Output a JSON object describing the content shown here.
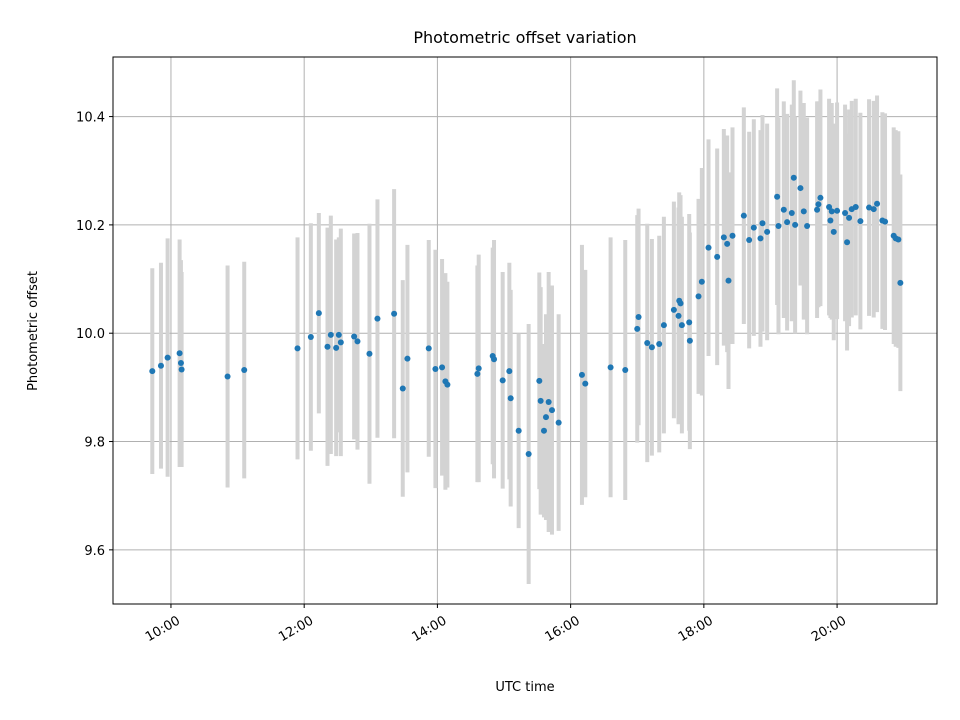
{
  "chart_data": {
    "type": "scatter",
    "title": "Photometric offset variation",
    "xlabel": "UTC time",
    "ylabel": "Photometric offset",
    "xlim": [
      9.13,
      21.5
    ],
    "ylim": [
      9.5,
      10.51
    ],
    "xticks": [
      10,
      12,
      14,
      16,
      18,
      20
    ],
    "xtick_labels": [
      "10:00",
      "12:00",
      "14:00",
      "16:00",
      "18:00",
      "20:00"
    ],
    "yticks": [
      9.6,
      9.8,
      10.0,
      10.2,
      10.4
    ],
    "ytick_labels": [
      "9.6",
      "9.8",
      "10.0",
      "10.2",
      "10.4"
    ],
    "grid": true,
    "point_color": "#1f77b4",
    "errorbar_color": "#d3d3d3",
    "series": [
      {
        "name": "offset",
        "x": [
          9.72,
          9.85,
          9.95,
          10.13,
          10.15,
          10.16,
          10.85,
          11.1,
          11.9,
          12.1,
          12.22,
          12.35,
          12.4,
          12.48,
          12.52,
          12.55,
          12.75,
          12.8,
          12.98,
          13.1,
          13.35,
          13.48,
          13.55,
          13.87,
          13.97,
          14.07,
          14.12,
          14.15,
          14.6,
          14.62,
          14.83,
          14.85,
          14.98,
          15.08,
          15.1,
          15.22,
          15.37,
          15.53,
          15.55,
          15.6,
          15.63,
          15.67,
          15.72,
          15.82,
          16.17,
          16.22,
          16.6,
          16.82,
          17.0,
          17.02,
          17.15,
          17.22,
          17.33,
          17.4,
          17.55,
          17.62,
          17.63,
          17.65,
          17.67,
          17.78,
          17.79,
          17.92,
          17.97,
          18.07,
          18.2,
          18.3,
          18.35,
          18.37,
          18.43,
          18.6,
          18.68,
          18.75,
          18.85,
          18.88,
          18.95,
          19.1,
          19.12,
          19.2,
          19.25,
          19.32,
          19.35,
          19.37,
          19.45,
          19.5,
          19.55,
          19.7,
          19.72,
          19.75,
          19.88,
          19.9,
          19.92,
          19.95,
          20.0,
          20.12,
          20.15,
          20.18,
          20.22,
          20.28,
          20.35,
          20.48,
          20.55,
          20.6,
          20.68,
          20.72,
          20.85,
          20.88,
          20.92,
          20.95
        ],
        "y": [
          9.93,
          9.94,
          9.955,
          9.963,
          9.945,
          9.933,
          9.92,
          9.932,
          9.972,
          9.993,
          10.037,
          9.975,
          9.997,
          9.973,
          9.997,
          9.983,
          9.994,
          9.985,
          9.962,
          10.027,
          10.036,
          9.898,
          9.953,
          9.972,
          9.934,
          9.937,
          9.911,
          9.905,
          9.925,
          9.935,
          9.958,
          9.952,
          9.913,
          9.93,
          9.88,
          9.82,
          9.777,
          9.912,
          9.875,
          9.82,
          9.845,
          9.873,
          9.858,
          9.835,
          9.923,
          9.907,
          9.937,
          9.932,
          10.008,
          10.03,
          9.982,
          9.974,
          9.98,
          10.015,
          10.043,
          10.032,
          10.06,
          10.055,
          10.015,
          10.02,
          9.986,
          10.068,
          10.095,
          10.158,
          10.141,
          10.177,
          10.165,
          10.097,
          10.18,
          10.217,
          10.172,
          10.195,
          10.175,
          10.203,
          10.187,
          10.252,
          10.198,
          10.228,
          10.205,
          10.222,
          10.287,
          10.2,
          10.268,
          10.225,
          10.198,
          10.228,
          10.238,
          10.25,
          10.233,
          10.208,
          10.225,
          10.187,
          10.226,
          10.222,
          10.168,
          10.213,
          10.229,
          10.233,
          10.207,
          10.232,
          10.229,
          10.239,
          10.208,
          10.206,
          10.18,
          10.175,
          10.173,
          10.093
        ],
        "yerr": [
          0.19,
          0.19,
          0.22,
          0.21,
          0.19,
          0.18,
          0.205,
          0.2,
          0.205,
          0.21,
          0.185,
          0.22,
          0.22,
          0.2,
          0.18,
          0.21,
          0.19,
          0.2,
          0.24,
          0.22,
          0.23,
          0.2,
          0.21,
          0.2,
          0.22,
          0.2,
          0.2,
          0.19,
          0.2,
          0.21,
          0.2,
          0.22,
          0.2,
          0.2,
          0.2,
          0.18,
          0.24,
          0.2,
          0.21,
          0.16,
          0.19,
          0.24,
          0.23,
          0.2,
          0.24,
          0.21,
          0.24,
          0.24,
          0.21,
          0.2,
          0.22,
          0.2,
          0.2,
          0.2,
          0.2,
          0.2,
          0.2,
          0.2,
          0.2,
          0.2,
          0.2,
          0.18,
          0.21,
          0.2,
          0.2,
          0.2,
          0.2,
          0.2,
          0.2,
          0.2,
          0.2,
          0.2,
          0.2,
          0.2,
          0.2,
          0.2,
          0.2,
          0.2,
          0.2,
          0.2,
          0.18,
          0.2,
          0.18,
          0.2,
          0.2,
          0.2,
          0.19,
          0.2,
          0.2,
          0.18,
          0.2,
          0.2,
          0.2,
          0.2,
          0.2,
          0.2,
          0.2,
          0.2,
          0.2,
          0.2,
          0.2,
          0.2,
          0.2,
          0.2,
          0.2,
          0.2,
          0.2,
          0.2
        ]
      }
    ]
  }
}
